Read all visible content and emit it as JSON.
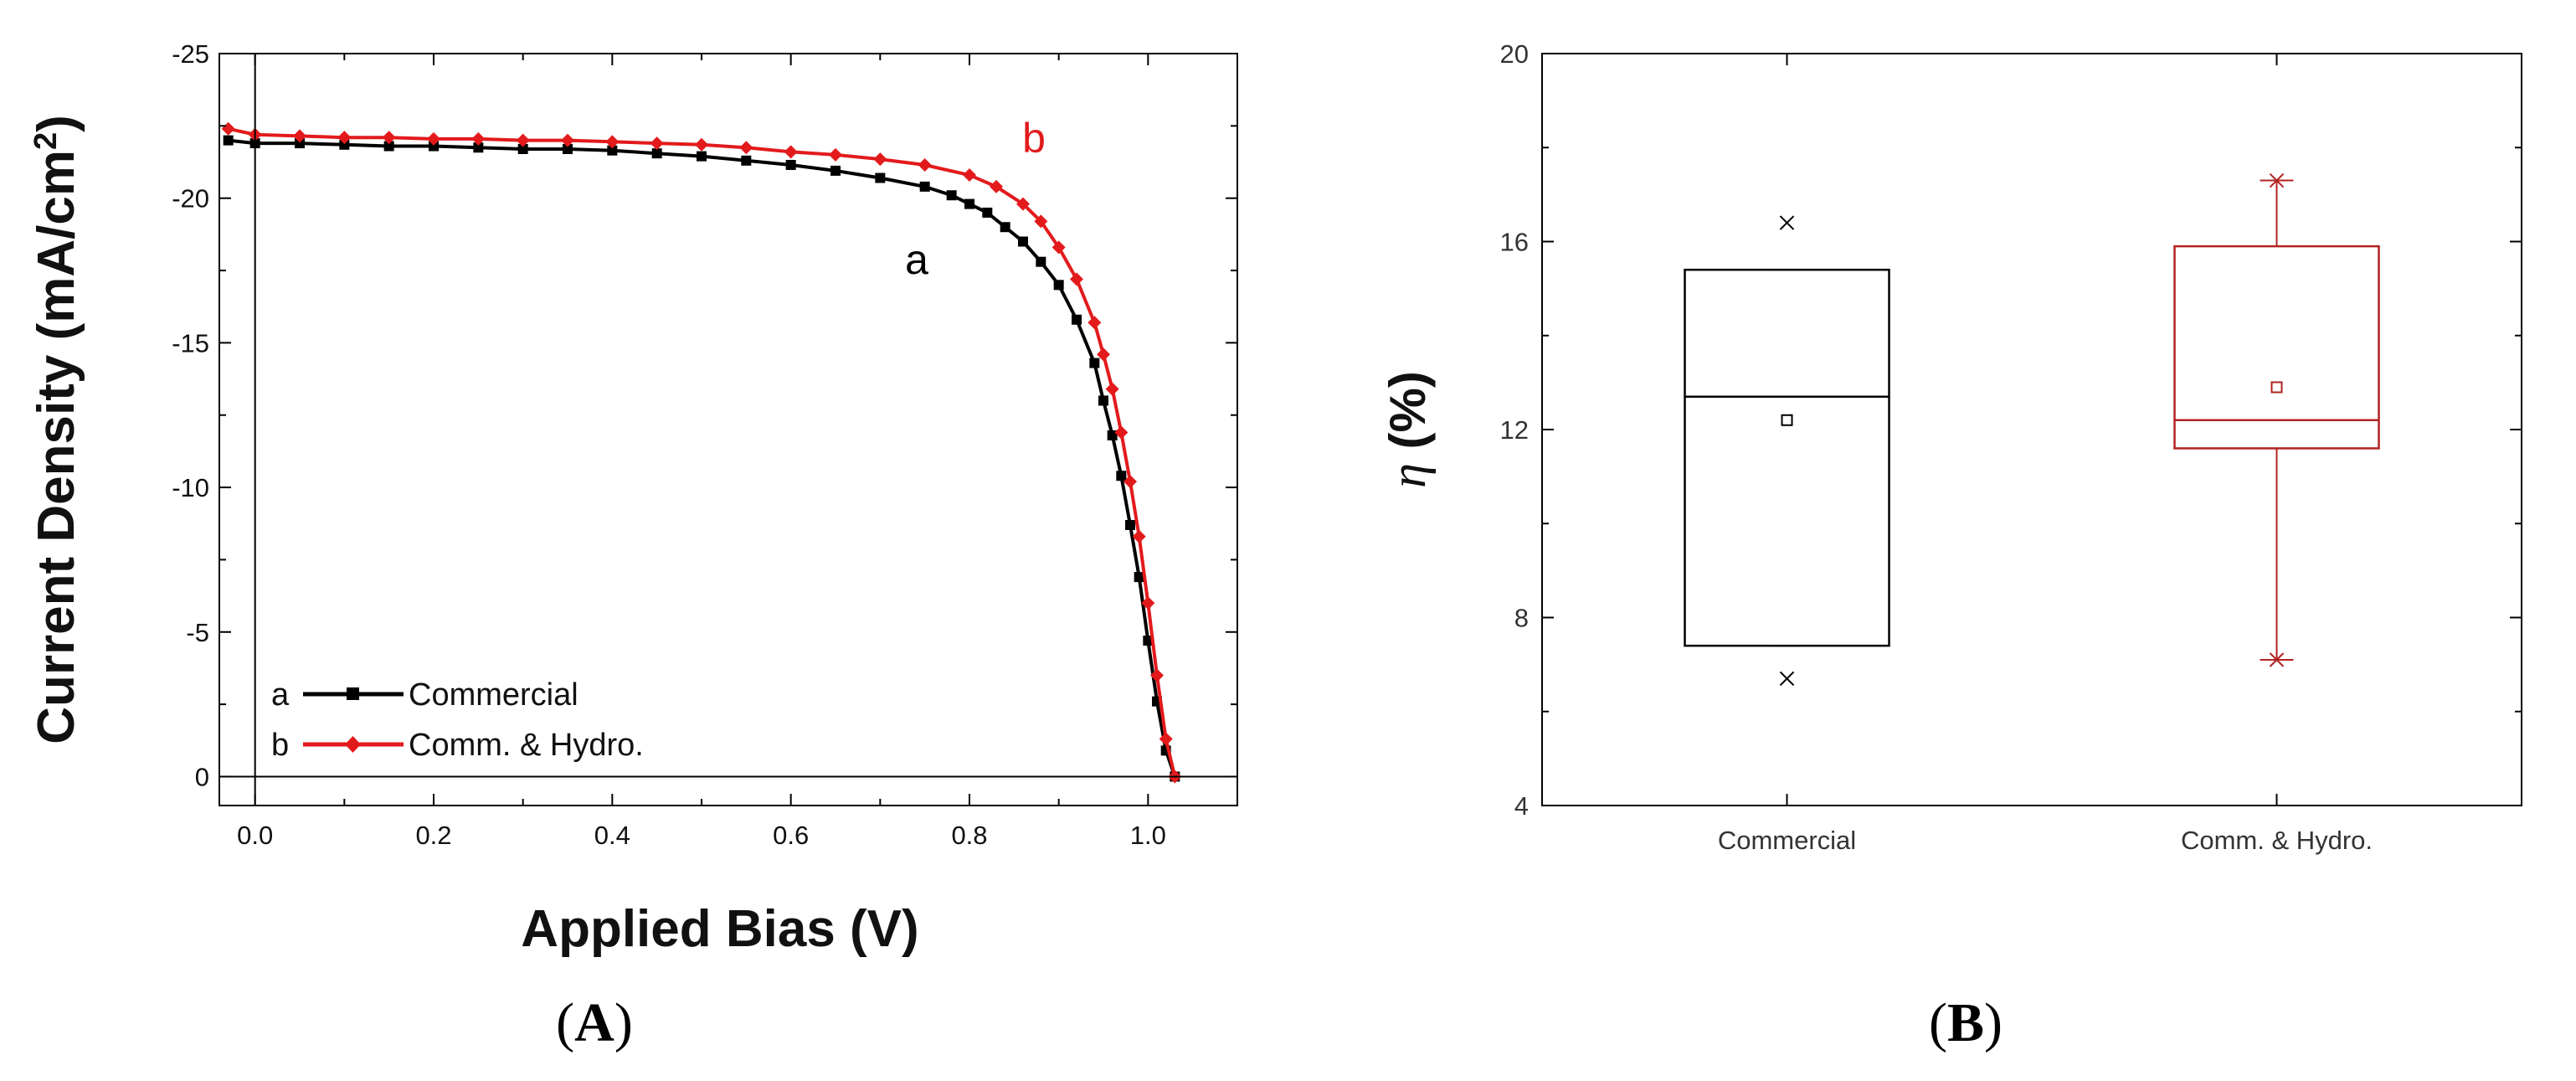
{
  "chart_data": [
    {
      "type": "line",
      "panel_label": "(A)",
      "panel_label_parts": [
        "(",
        "A",
        ")"
      ],
      "title": "",
      "xlabel": "Applied Bias (V)",
      "ylabel": {
        "main": "Current Density (mA/cm",
        "superscript": "2",
        "close": ")"
      },
      "xlim": [
        -0.04,
        1.1
      ],
      "ylim": [
        -25,
        1
      ],
      "x_ticks": [
        0.0,
        0.2,
        0.4,
        0.6,
        0.8,
        1.0
      ],
      "x_tick_labels": [
        "0.0",
        "0.2",
        "0.4",
        "0.6",
        "0.8",
        "1.0"
      ],
      "y_ticks": [
        -25,
        -20,
        -15,
        -10,
        -5,
        0
      ],
      "y_tick_labels": [
        "-25",
        "-20",
        "-15",
        "-10",
        "-5",
        "0"
      ],
      "legend_position": "bottom-left",
      "series": [
        {
          "name": "Commercial",
          "letter": "a",
          "color": "#000000",
          "x": [
            -0.03,
            0.0,
            0.05,
            0.1,
            0.15,
            0.2,
            0.25,
            0.3,
            0.35,
            0.4,
            0.45,
            0.5,
            0.55,
            0.6,
            0.65,
            0.7,
            0.75,
            0.78,
            0.8,
            0.82,
            0.84,
            0.86,
            0.88,
            0.9,
            0.92,
            0.94,
            0.95,
            0.96,
            0.97,
            0.98,
            0.99,
            1.0,
            1.01,
            1.02,
            1.03
          ],
          "values": [
            -22.0,
            -21.9,
            -21.9,
            -21.85,
            -21.8,
            -21.8,
            -21.75,
            -21.7,
            -21.7,
            -21.65,
            -21.55,
            -21.45,
            -21.3,
            -21.15,
            -20.95,
            -20.7,
            -20.4,
            -20.1,
            -19.8,
            -19.5,
            -19.0,
            -18.5,
            -17.8,
            -17.0,
            -15.8,
            -14.3,
            -13.0,
            -11.8,
            -10.4,
            -8.7,
            -6.9,
            -4.7,
            -2.6,
            -0.9,
            0.0
          ]
        },
        {
          "name": "Comm. & Hydro.",
          "letter": "b",
          "color": "#e31a1c",
          "x": [
            -0.03,
            0.0,
            0.05,
            0.1,
            0.15,
            0.2,
            0.25,
            0.3,
            0.35,
            0.4,
            0.45,
            0.5,
            0.55,
            0.6,
            0.65,
            0.7,
            0.75,
            0.8,
            0.83,
            0.86,
            0.88,
            0.9,
            0.92,
            0.94,
            0.95,
            0.96,
            0.97,
            0.98,
            0.99,
            1.0,
            1.01,
            1.02,
            1.03
          ],
          "values": [
            -22.4,
            -22.2,
            -22.15,
            -22.1,
            -22.1,
            -22.05,
            -22.05,
            -22.0,
            -22.0,
            -21.95,
            -21.9,
            -21.85,
            -21.75,
            -21.6,
            -21.5,
            -21.35,
            -21.15,
            -20.8,
            -20.4,
            -19.8,
            -19.2,
            -18.3,
            -17.2,
            -15.7,
            -14.6,
            -13.4,
            -11.9,
            -10.2,
            -8.3,
            -6.0,
            -3.5,
            -1.3,
            0.0
          ]
        }
      ],
      "annotations": [
        {
          "text": "a",
          "x": 0.75,
          "y": -18.0
        },
        {
          "text": "b",
          "x": 0.87,
          "y": -22.1
        }
      ]
    },
    {
      "type": "box",
      "panel_label": "(B)",
      "panel_label_parts": [
        "(",
        "B",
        ")"
      ],
      "title": "",
      "xlabel": "",
      "ylabel": {
        "symbol": "η",
        "rest": " (%)"
      },
      "ylim": [
        4,
        20
      ],
      "y_ticks": [
        4,
        8,
        12,
        16,
        20
      ],
      "y_tick_labels": [
        "4",
        "8",
        "12",
        "16",
        "20"
      ],
      "categories": [
        "Commercial",
        "Comm. & Hydro."
      ],
      "boxes": [
        {
          "name": "Commercial",
          "color": "#000000",
          "min": 6.7,
          "q1": 7.4,
          "median": 12.7,
          "q3": 15.4,
          "max": 16.4,
          "mean": 12.2,
          "whisker_low": 7.4,
          "whisker_high": 15.4
        },
        {
          "name": "Comm. & Hydro.",
          "color": "#b22222",
          "min": 7.1,
          "q1": 11.6,
          "median": 12.2,
          "q3": 15.9,
          "max": 17.3,
          "mean": 12.9,
          "whisker_low": 7.1,
          "whisker_high": 17.3
        }
      ]
    }
  ]
}
